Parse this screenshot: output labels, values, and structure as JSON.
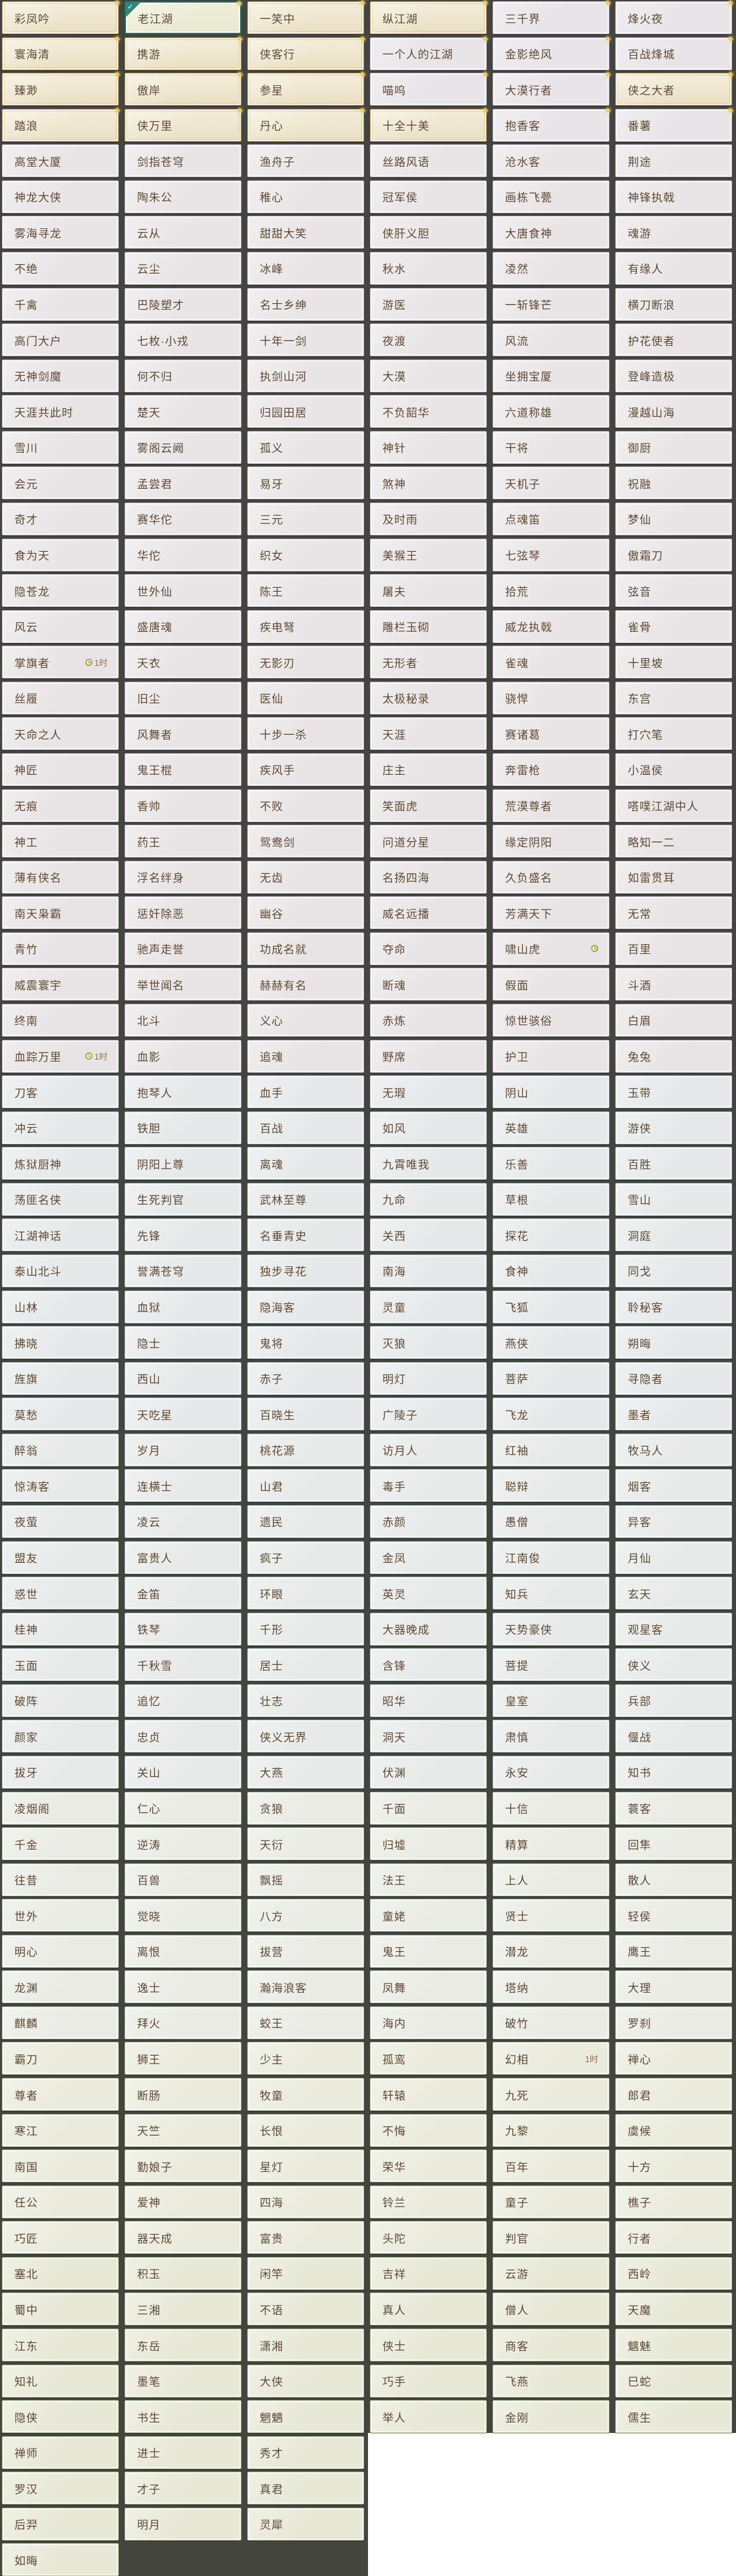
{
  "meta": {
    "screen": "game-title-list",
    "selected_title": "老江湖",
    "badge_time_label": "1时",
    "checkmark_glyph": "✓",
    "sparkle_glyph": "✦",
    "colors": {
      "panel_background": "#44453f",
      "selected_border": "#2f6f61",
      "selected_check_bg": "#2f8577",
      "gold_cell_border": "#bb9c60",
      "sparkle": "#f6c94f",
      "text": "#5b4632",
      "badge_text": "#8a6f4d",
      "clock_icon": "#aea74b"
    }
  },
  "panels": [
    {
      "name": "left",
      "rows": [
        [
          {
            "t": "彩凤吟",
            "g": 1,
            "sp": 1
          },
          {
            "t": "老江湖",
            "g": 1,
            "sel": 1,
            "sp": 1
          },
          {
            "t": "一笑中",
            "g": 1,
            "sp": 1
          }
        ],
        [
          {
            "t": "寰海清",
            "g": 1,
            "sp": 1
          },
          {
            "t": "携游",
            "g": 1,
            "sp": 1
          },
          {
            "t": "侠客行",
            "g": 1,
            "sp": 1
          }
        ],
        [
          {
            "t": "臻渺",
            "g": 1,
            "sp": 1
          },
          {
            "t": "傲岸",
            "g": 1,
            "sp": 1
          },
          {
            "t": "参星",
            "g": 1,
            "sp": 1
          }
        ],
        [
          {
            "t": "踏浪",
            "g": 1,
            "sp": 1
          },
          {
            "t": "侠万里",
            "g": 1,
            "sp": 1
          },
          {
            "t": "丹心",
            "g": 1,
            "sp": 1
          }
        ],
        [
          "高堂大厦",
          "剑指苍穹",
          "渔舟子"
        ],
        [
          "神龙大侠",
          "陶朱公",
          "稚心"
        ],
        [
          "雾海寻龙",
          "云从",
          "甜甜大笑"
        ],
        [
          "不绝",
          "云尘",
          "冰峰"
        ],
        [
          "千禽",
          "巴陵塑才",
          "名士乡绅"
        ],
        [
          "高门大户",
          "七枚·小戎",
          "十年一剑"
        ],
        [
          "无神剑魔",
          "何不归",
          "执剑山河"
        ],
        [
          "天涯共此时",
          "楚天",
          "归园田居"
        ],
        [
          "雪川",
          "雾阁云阙",
          "孤义"
        ],
        [
          "会元",
          "孟尝君",
          "易牙"
        ],
        [
          "奇才",
          "赛华佗",
          "三元"
        ],
        [
          "食为天",
          "华佗",
          "织女"
        ],
        [
          "隐苍龙",
          "世外仙",
          "陈王"
        ],
        [
          "风云",
          "盛唐魂",
          "疾电弩"
        ],
        [
          {
            "t": "掌旗者",
            "bd": "1时",
            "ck": 1
          },
          "天衣",
          "无影刃"
        ],
        [
          "丝履",
          "旧尘",
          "医仙"
        ],
        [
          "天命之人",
          "风舞者",
          "十步一杀"
        ],
        [
          "神匠",
          "鬼王棍",
          "疾风手"
        ],
        [
          "无痕",
          "香帅",
          "不败"
        ],
        [
          "神工",
          "药王",
          "鸳鸯剑"
        ],
        [
          "薄有侠名",
          "浮名绊身",
          "无齿"
        ],
        [
          "南天枭霸",
          "惩奸除恶",
          "幽谷"
        ],
        [
          "青竹",
          "驰声走誉",
          "功成名就"
        ],
        [
          "威震寰宇",
          "举世闻名",
          "赫赫有名"
        ],
        [
          "终南",
          "北斗",
          "义心"
        ],
        [
          {
            "t": "血踪万里",
            "bd": "1时",
            "ck": 1
          },
          "血影",
          "追魂"
        ],
        [
          "刀客",
          "抱琴人",
          "血手"
        ],
        [
          "冲云",
          "铁胆",
          "百战"
        ],
        [
          "炼狱厨神",
          "阴阳上尊",
          "离魂"
        ],
        [
          "荡匪名侠",
          "生死判官",
          "武林至尊"
        ],
        [
          "江湖神话",
          "先锋",
          "名垂青史"
        ],
        [
          "泰山北斗",
          "誉满苍穹",
          "独步寻花"
        ],
        [
          "山林",
          "血狱",
          "隐海客"
        ],
        [
          "拂晓",
          "隐士",
          "鬼将"
        ],
        [
          "旌旗",
          "西山",
          "赤子"
        ],
        [
          "莫愁",
          "天吃星",
          "百晓生"
        ],
        [
          "醉翁",
          "岁月",
          "桃花源"
        ],
        [
          "惊涛客",
          "连横士",
          "山君"
        ],
        [
          "夜萤",
          "凌云",
          "遗民"
        ],
        [
          "盟友",
          "富贵人",
          "疯子"
        ],
        [
          "惑世",
          "金笛",
          "环眼"
        ],
        [
          "桂神",
          "铁琴",
          "千形"
        ],
        [
          "玉面",
          "千秋雪",
          "居士"
        ],
        [
          "破阵",
          "追忆",
          "壮志"
        ],
        [
          "颜家",
          "忠贞",
          "侠义无界"
        ],
        [
          "拔牙",
          "关山",
          "大燕"
        ],
        [
          "凌烟阁",
          "仁心",
          "贪狼"
        ],
        [
          "千金",
          "逆涛",
          "天衍"
        ],
        [
          "往昔",
          "百兽",
          "飘摇"
        ],
        [
          "世外",
          "觉晓",
          "八方"
        ],
        [
          "明心",
          "离恨",
          "拔营"
        ],
        [
          "龙渊",
          "逸士",
          "瀚海浪客"
        ],
        [
          "麒麟",
          "拜火",
          "蛟王"
        ],
        [
          "霸刀",
          "狮王",
          "少主"
        ],
        [
          "尊者",
          "断肠",
          "牧童"
        ],
        [
          "寒江",
          "天竺",
          "长恨"
        ],
        [
          "南国",
          "勤娘子",
          "星灯"
        ],
        [
          "任公",
          "爱神",
          "四海"
        ],
        [
          "巧匠",
          "器天成",
          "富贵"
        ],
        [
          "塞北",
          "积玉",
          "闲竿"
        ],
        [
          "蜀中",
          "三湘",
          "不语"
        ],
        [
          "江东",
          "东岳",
          "潇湘"
        ],
        [
          "知礼",
          "墨笔",
          "大侠"
        ],
        [
          "隐侠",
          "书生",
          "魍魉"
        ],
        [
          "禅师",
          "进士",
          "秀才"
        ],
        [
          "罗汉",
          "才子",
          "真君"
        ],
        [
          "后羿",
          "明月",
          "灵犀"
        ],
        [
          "如晦"
        ]
      ]
    },
    {
      "name": "right",
      "rows": [
        [
          {
            "t": "纵江湖",
            "g": 1,
            "sp": 1
          },
          {
            "t": "三千界",
            "sp": 1
          },
          {
            "t": "烽火夜",
            "sp": 1
          }
        ],
        [
          {
            "t": "一个人的江湖",
            "sp": 1
          },
          {
            "t": "金影绝风",
            "sp": 1
          },
          {
            "t": "百战烽城",
            "sp": 1
          }
        ],
        [
          {
            "t": "喵呜",
            "sp": 1
          },
          {
            "t": "大漠行者",
            "sp": 1
          },
          {
            "t": "侠之大者",
            "g": 1,
            "sp": 1
          }
        ],
        [
          {
            "t": "十全十美",
            "g": 1,
            "sp": 1
          },
          {
            "t": "抱香客",
            "sp": 1
          },
          {
            "t": "番薯",
            "sp": 1
          }
        ],
        [
          "丝路风语",
          "沧水客",
          "荆途"
        ],
        [
          "冠军侯",
          "画栋飞甍",
          "神锋执戟"
        ],
        [
          "侠肝义胆",
          "大唐食神",
          "魂游"
        ],
        [
          "秋水",
          "凌然",
          "有缘人"
        ],
        [
          "游医",
          "一斩锋芒",
          "横刀断浪"
        ],
        [
          "夜渡",
          "风流",
          "护花使者"
        ],
        [
          "大漠",
          "坐拥宝厦",
          "登峰造极"
        ],
        [
          "不负韶华",
          "六道称雄",
          "漫越山海"
        ],
        [
          "神针",
          "干将",
          "御厨"
        ],
        [
          "煞神",
          "天机子",
          "祝融"
        ],
        [
          "及时雨",
          "点魂笛",
          "梦仙"
        ],
        [
          "美猴王",
          "七弦琴",
          "傲霜刀"
        ],
        [
          "屠夫",
          "拾荒",
          "弦音"
        ],
        [
          "雕栏玉砌",
          "威龙执戟",
          "雀骨"
        ],
        [
          "无形者",
          "雀魂",
          "十里坡"
        ],
        [
          "太极秘录",
          "骁悍",
          "东宫"
        ],
        [
          "天涯",
          "赛诸葛",
          "打穴笔"
        ],
        [
          "庄主",
          "奔雷枪",
          "小温侯"
        ],
        [
          "笑面虎",
          "荒漠尊者",
          "嗒噗江湖中人"
        ],
        [
          "问道分星",
          "缘定阴阳",
          "略知一二"
        ],
        [
          "名扬四海",
          "久负盛名",
          "如雷贯耳"
        ],
        [
          "威名远播",
          "芳满天下",
          "无常"
        ],
        [
          "夺命",
          {
            "t": "啸山虎",
            "ck": 1
          },
          "百里"
        ],
        [
          "断魂",
          "假面",
          "斗酒"
        ],
        [
          "赤炼",
          "惊世骇俗",
          "白眉"
        ],
        [
          "野席",
          "护卫",
          "兔兔"
        ],
        [
          "无瑕",
          "阴山",
          "玉带"
        ],
        [
          "如风",
          "英雄",
          "游侠"
        ],
        [
          "九霄唯我",
          "乐善",
          "百胜"
        ],
        [
          "九命",
          "草根",
          "雪山"
        ],
        [
          "关西",
          "探花",
          "洞庭"
        ],
        [
          "南海",
          "食神",
          "同戈"
        ],
        [
          "灵童",
          "飞狐",
          "聆秘客"
        ],
        [
          "灭狼",
          "燕侠",
          "朔晦"
        ],
        [
          "明灯",
          "菩萨",
          "寻隐者"
        ],
        [
          "广陵子",
          "飞龙",
          "墨者"
        ],
        [
          "访月人",
          "红袖",
          "牧马人"
        ],
        [
          "毒手",
          "聪辩",
          "烟客"
        ],
        [
          "赤颜",
          "愚僧",
          "异客"
        ],
        [
          "金凤",
          "江南俊",
          "月仙"
        ],
        [
          "英灵",
          "知兵",
          "玄天"
        ],
        [
          "大器晚成",
          "天势豪侠",
          "观星客"
        ],
        [
          "含锋",
          "菩提",
          "侠义"
        ],
        [
          "昭华",
          "皇室",
          "兵部"
        ],
        [
          "洞天",
          "肃慎",
          "偃战"
        ],
        [
          "伏渊",
          "永安",
          "知书"
        ],
        [
          "千面",
          "十信",
          "蓑客"
        ],
        [
          "归墟",
          "精算",
          "回隼"
        ],
        [
          "法王",
          "上人",
          "散人"
        ],
        [
          "童姥",
          "贤士",
          "轻侯"
        ],
        [
          "鬼王",
          "潜龙",
          "鹰王"
        ],
        [
          "凤舞",
          "塔纳",
          "大理"
        ],
        [
          "海内",
          "破竹",
          "罗刹"
        ],
        [
          "孤鸾",
          {
            "t": "幻相",
            "bd": "1时"
          },
          "禅心"
        ],
        [
          "轩辕",
          "九死",
          "郎君"
        ],
        [
          "不悔",
          "九黎",
          "虞候"
        ],
        [
          "荣华",
          "百年",
          "十方"
        ],
        [
          "铃兰",
          "童子",
          "樵子"
        ],
        [
          "头陀",
          "判官",
          "行者"
        ],
        [
          "吉祥",
          "云游",
          "西岭"
        ],
        [
          "真人",
          "僧人",
          "天魔"
        ],
        [
          "侠士",
          "商客",
          "魑魅"
        ],
        [
          "巧手",
          "飞燕",
          "巳蛇"
        ],
        [
          "举人",
          "金刚",
          "儒生"
        ]
      ]
    }
  ]
}
